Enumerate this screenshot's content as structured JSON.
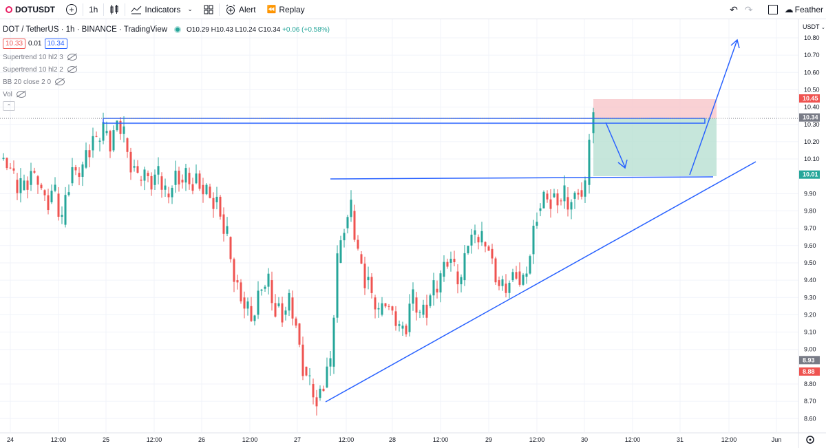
{
  "toolbar": {
    "symbol": "DOTUSDT",
    "interval": "1h",
    "indicators_label": "Indicators",
    "alert_label": "Alert",
    "replay_label": "Replay",
    "layout_name": "Feather"
  },
  "legend": {
    "title": "DOT / TetherUS · 1h · BINANCE · TradingView",
    "open": "O10.29",
    "high": "H10.43",
    "low": "L10.24",
    "close": "C10.34",
    "change": "+0.06 (+0.58%)",
    "bid": "10.33",
    "spread": "0.01",
    "ask": "10.34",
    "indicators": [
      "Supertrend 10 hl2 3",
      "Supertrend 10 hl2 2",
      "BB 20 close 2 0",
      "Vol"
    ]
  },
  "price_axis": {
    "currency": "USDT",
    "ticks": [
      "10.80",
      "10.70",
      "10.60",
      "10.50",
      "10.40",
      "10.30",
      "10.20",
      "10.10",
      "9.90",
      "9.80",
      "9.70",
      "9.60",
      "9.50",
      "9.40",
      "9.30",
      "9.20",
      "9.10",
      "9.00",
      "8.80",
      "8.70",
      "8.60"
    ],
    "labels": [
      {
        "text": "10.45",
        "color": "#ef5350"
      },
      {
        "text": "10.34",
        "color": "#787b86"
      },
      {
        "text": "10.01",
        "color": "#26a69a"
      },
      {
        "text": "8.93",
        "color": "#787b86"
      },
      {
        "text": "8.88",
        "color": "#ef5350"
      }
    ]
  },
  "time_axis": {
    "ticks": [
      "24",
      "12:00",
      "25",
      "12:00",
      "26",
      "12:00",
      "27",
      "12:00",
      "28",
      "12:00",
      "29",
      "12:00",
      "30",
      "12:00",
      "31",
      "12:00",
      "Jun"
    ]
  },
  "colors": {
    "up": "#26a69a",
    "down": "#ef5350",
    "drawing": "#2962ff"
  }
}
